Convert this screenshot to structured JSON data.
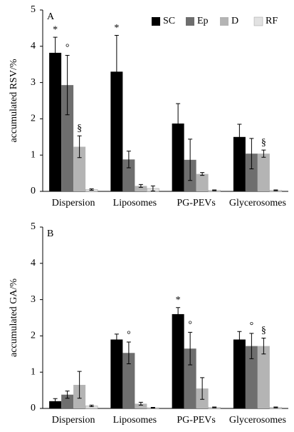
{
  "chart_data": [
    {
      "type": "bar",
      "panel_label": "A",
      "ylabel": "accumulated RSV/%",
      "categories": [
        "Dispersion",
        "Liposomes",
        "PG-PEVs",
        "Glycerosomes"
      ],
      "series": [
        {
          "name": "SC",
          "color": "#000000",
          "values": [
            3.82,
            3.3,
            1.87,
            1.5
          ],
          "errors": [
            0.43,
            1.0,
            0.55,
            0.35
          ]
        },
        {
          "name": "Ep",
          "color": "#6e6e6e",
          "values": [
            2.93,
            0.88,
            0.87,
            1.04
          ],
          "errors": [
            0.82,
            0.23,
            0.57,
            0.42
          ]
        },
        {
          "name": "D",
          "color": "#b4b4b4",
          "values": [
            1.23,
            0.15,
            0.48,
            1.04
          ],
          "errors": [
            0.3,
            0.04,
            0.04,
            0.1
          ]
        },
        {
          "name": "RF",
          "color": "#e2e2e2",
          "values": [
            0.05,
            0.08,
            0.03,
            0.03
          ],
          "errors": [
            0.02,
            0.07,
            0.01,
            0.01
          ]
        }
      ],
      "ylim": [
        0,
        5
      ],
      "yticks": [
        0,
        1,
        2,
        3,
        4,
        5
      ],
      "legend": "upper right",
      "annotations": [
        {
          "text": "*",
          "category": "Dispersion",
          "series": "SC"
        },
        {
          "text": "°",
          "category": "Dispersion",
          "series": "Ep"
        },
        {
          "text": "§",
          "category": "Dispersion",
          "series": "D"
        },
        {
          "text": "*",
          "category": "Liposomes",
          "series": "SC"
        },
        {
          "text": "§",
          "category": "Glycerosomes",
          "series": "D"
        }
      ]
    },
    {
      "type": "bar",
      "panel_label": "B",
      "ylabel": "accumulated GA/%",
      "categories": [
        "Dispersion",
        "Liposomes",
        "PG-PEVs",
        "Glycerosomes"
      ],
      "series": [
        {
          "name": "SC",
          "color": "#000000",
          "values": [
            0.2,
            1.9,
            2.6,
            1.9
          ],
          "errors": [
            0.07,
            0.15,
            0.18,
            0.22
          ]
        },
        {
          "name": "Ep",
          "color": "#6e6e6e",
          "values": [
            0.38,
            1.53,
            1.65,
            1.72
          ],
          "errors": [
            0.1,
            0.3,
            0.45,
            0.35
          ]
        },
        {
          "name": "D",
          "color": "#b4b4b4",
          "values": [
            0.65,
            0.13,
            0.55,
            1.72
          ],
          "errors": [
            0.37,
            0.04,
            0.3,
            0.22
          ]
        },
        {
          "name": "RF",
          "color": "#e2e2e2",
          "values": [
            0.07,
            0.02,
            0.03,
            0.03
          ],
          "errors": [
            0.02,
            0.01,
            0.01,
            0.01
          ]
        }
      ],
      "ylim": [
        0,
        5
      ],
      "yticks": [
        0,
        1,
        2,
        3,
        4,
        5
      ],
      "annotations": [
        {
          "text": "*",
          "category": "PG-PEVs",
          "series": "SC"
        },
        {
          "text": "°",
          "category": "Liposomes",
          "series": "Ep"
        },
        {
          "text": "°",
          "category": "PG-PEVs",
          "series": "Ep"
        },
        {
          "text": "°",
          "category": "Glycerosomes",
          "series": "Ep"
        },
        {
          "text": "§",
          "category": "Glycerosomes",
          "series": "D"
        }
      ]
    }
  ]
}
